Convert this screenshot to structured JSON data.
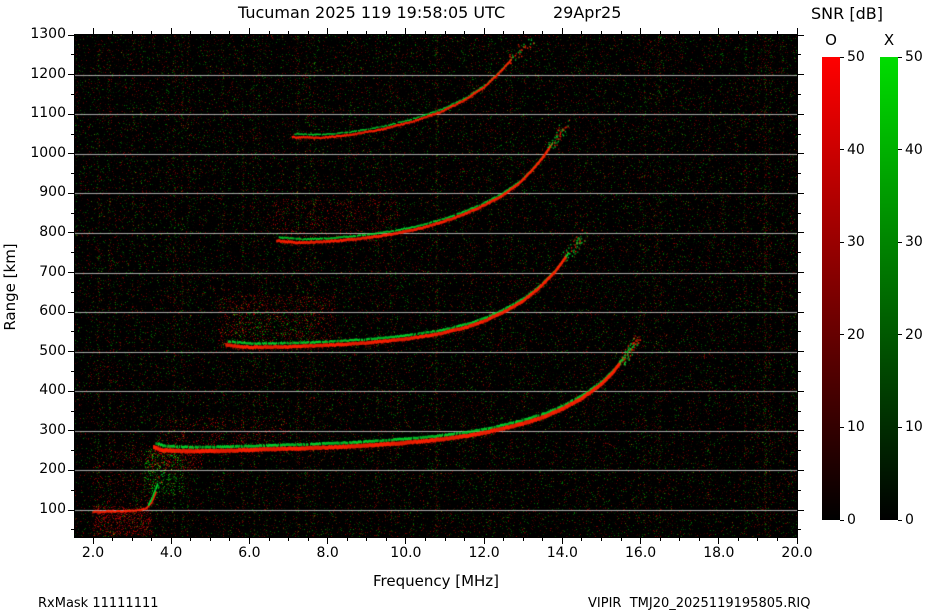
{
  "title": {
    "main": "Tucuman 2025 119 19:58:05 UTC",
    "date": "29Apr25"
  },
  "footer": {
    "left": "RxMask 11111111",
    "right": "VIPIR  TMJ20_2025119195805.RIQ"
  },
  "axes": {
    "x": {
      "label": "Frequency [MHz]",
      "min": 2.0,
      "max": 20.0,
      "ticks": [
        "2.0",
        "4.0",
        "6.0",
        "8.0",
        "10.0",
        "12.0",
        "14.0",
        "16.0",
        "18.0",
        "20.0"
      ]
    },
    "y": {
      "label": "Range [km]",
      "min": 100,
      "max": 1300,
      "ticks": [
        "100",
        "200",
        "300",
        "400",
        "500",
        "600",
        "700",
        "800",
        "900",
        "1000",
        "1100",
        "1200",
        "1300"
      ]
    }
  },
  "colorbar": {
    "title": "SNR [dB]",
    "min": 0,
    "max": 50,
    "ticks": [
      "0",
      "10",
      "20",
      "30",
      "40",
      "50"
    ],
    "bars": [
      {
        "label": "O",
        "color": "#ff0000"
      },
      {
        "label": "X",
        "color": "#00dd00"
      }
    ]
  },
  "chart_data": {
    "type": "heatmap",
    "title": "Tucuman 2025 119 19:58:05 UTC 29Apr25",
    "xlabel": "Frequency [MHz]",
    "ylabel": "Range [km]",
    "xlim": [
      2.0,
      20.0
    ],
    "ylim": [
      100,
      1300
    ],
    "value_label": "SNR [dB]",
    "value_range": [
      0,
      50
    ],
    "o_color": "#ff2000",
    "x_color": "#00dd30",
    "background": "#000000",
    "grid_km_step": 100,
    "series": [
      {
        "name": "E-region echo",
        "color": "red",
        "weight": 1.0,
        "end_scatter": 0,
        "points": [
          [
            2.0,
            95
          ],
          [
            2.6,
            96
          ],
          [
            3.1,
            98
          ],
          [
            3.35,
            103
          ],
          [
            3.5,
            118
          ],
          [
            3.62,
            148
          ]
        ]
      },
      {
        "name": "sporadic-E patch X-mode",
        "color": "green",
        "weight": 1.8,
        "end_scatter": 15,
        "points": [
          [
            3.42,
            112
          ],
          [
            3.52,
            132
          ],
          [
            3.6,
            152
          ],
          [
            3.66,
            168
          ]
        ]
      },
      {
        "name": "F-trace 1st hop",
        "color": "both",
        "weight": 2.0,
        "end_scatter": 90,
        "points": [
          [
            3.55,
            258
          ],
          [
            3.8,
            251
          ],
          [
            4.5,
            248
          ],
          [
            5.5,
            250
          ],
          [
            6.5,
            253
          ],
          [
            7.5,
            256
          ],
          [
            8.5,
            260
          ],
          [
            9.5,
            266
          ],
          [
            10.5,
            274
          ],
          [
            11.5,
            286
          ],
          [
            12.0,
            295
          ],
          [
            12.5,
            306
          ],
          [
            13.0,
            318
          ],
          [
            13.5,
            334
          ],
          [
            14.0,
            355
          ],
          [
            14.5,
            382
          ],
          [
            15.0,
            418
          ],
          [
            15.3,
            448
          ],
          [
            15.5,
            475
          ]
        ]
      },
      {
        "name": "F-trace 2nd hop",
        "color": "both",
        "weight": 1.7,
        "end_scatter": 60,
        "points": [
          [
            5.4,
            516
          ],
          [
            6.0,
            511
          ],
          [
            7.0,
            512
          ],
          [
            8.0,
            516
          ],
          [
            9.0,
            522
          ],
          [
            10.0,
            532
          ],
          [
            10.8,
            544
          ],
          [
            11.5,
            560
          ],
          [
            12.0,
            577
          ],
          [
            12.5,
            600
          ],
          [
            13.0,
            628
          ],
          [
            13.4,
            660
          ],
          [
            13.8,
            700
          ],
          [
            14.1,
            740
          ]
        ]
      },
      {
        "name": "F-trace 3rd hop",
        "color": "both",
        "weight": 1.4,
        "end_scatter": 50,
        "points": [
          [
            6.7,
            780
          ],
          [
            7.3,
            775
          ],
          [
            8.0,
            778
          ],
          [
            8.8,
            785
          ],
          [
            9.6,
            796
          ],
          [
            10.4,
            812
          ],
          [
            11.2,
            836
          ],
          [
            11.8,
            860
          ],
          [
            12.4,
            890
          ],
          [
            12.9,
            925
          ],
          [
            13.2,
            955
          ],
          [
            13.5,
            990
          ],
          [
            13.7,
            1020
          ]
        ]
      },
      {
        "name": "F-trace 4th hop",
        "color": "both",
        "weight": 1.1,
        "end_scatter": 35,
        "points": [
          [
            7.1,
            1042
          ],
          [
            7.8,
            1040
          ],
          [
            8.6,
            1048
          ],
          [
            9.4,
            1062
          ],
          [
            10.2,
            1082
          ],
          [
            10.9,
            1106
          ],
          [
            11.5,
            1135
          ],
          [
            12.0,
            1168
          ],
          [
            12.4,
            1205
          ],
          [
            12.7,
            1238
          ]
        ]
      }
    ],
    "spread_regions": [
      {
        "f": [
          2.0,
          3.5
        ],
        "r": [
          34,
          110
        ],
        "color": "red",
        "n": 700
      },
      {
        "f": [
          2.0,
          3.6
        ],
        "r": [
          110,
          250
        ],
        "color": "red",
        "n": 260
      },
      {
        "f": [
          3.3,
          4.3
        ],
        "r": [
          140,
          255
        ],
        "color": "green",
        "n": 420
      },
      {
        "f": [
          3.4,
          4.8
        ],
        "r": [
          200,
          262
        ],
        "color": "red",
        "n": 360
      },
      {
        "f": [
          3.6,
          7.0
        ],
        "r": [
          258,
          335
        ],
        "color": "red",
        "n": 420
      },
      {
        "f": [
          5.2,
          8.2
        ],
        "r": [
          515,
          645
        ],
        "color": "red",
        "n": 850
      },
      {
        "f": [
          5.6,
          7.6
        ],
        "r": [
          520,
          600
        ],
        "color": "green",
        "n": 220
      },
      {
        "f": [
          6.6,
          9.8
        ],
        "r": [
          778,
          885
        ],
        "color": "red",
        "n": 520
      }
    ]
  }
}
